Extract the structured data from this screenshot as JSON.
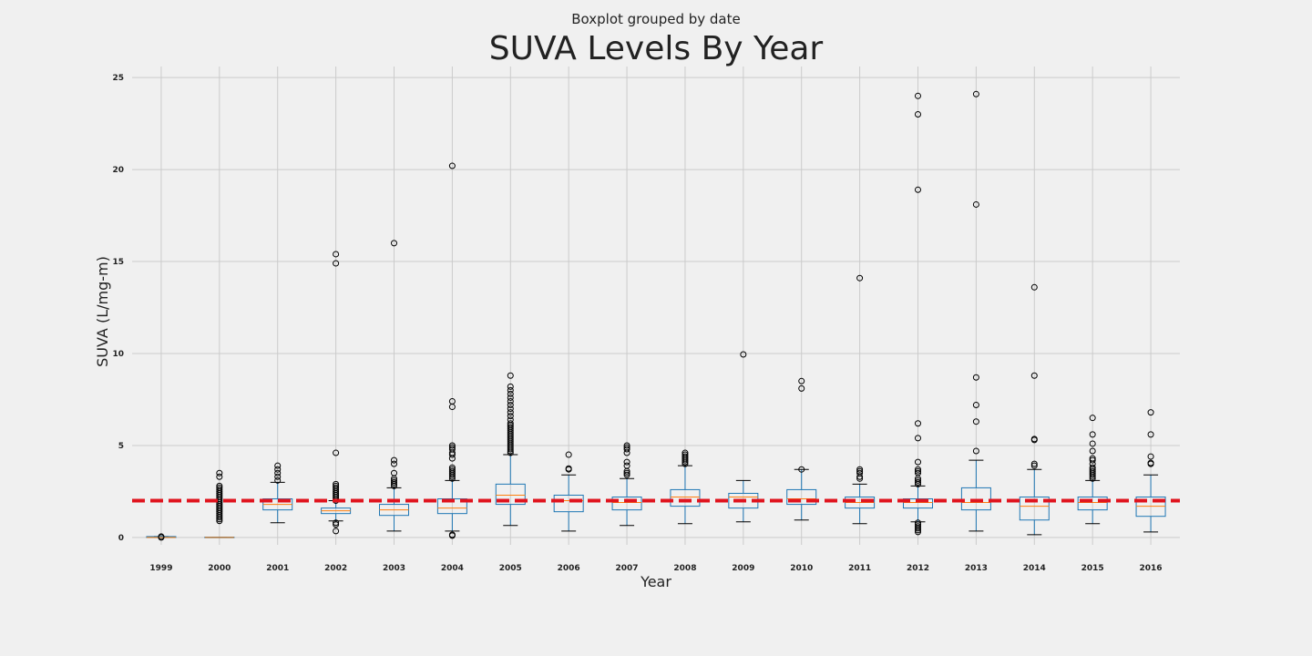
{
  "chart_data": {
    "type": "boxplot",
    "suptitle": "Boxplot grouped by date",
    "title": "SUVA Levels By Year",
    "xlabel": "Year",
    "ylabel": "SUVA (L/mg-m)",
    "ylim": [
      -0.4,
      25.6
    ],
    "yticks": [
      0,
      5,
      10,
      15,
      20,
      25
    ],
    "grid": true,
    "reference_line": {
      "y": 2,
      "color": "#e0141e",
      "style": "dashed"
    },
    "colors": {
      "background": "#f0f0f0",
      "box": "#1f77b4",
      "median": "#ff7f0e",
      "whisker": "#000000",
      "grid": "#cbcbcb"
    },
    "categories": [
      "1999",
      "2000",
      "2001",
      "2002",
      "2003",
      "2004",
      "2005",
      "2006",
      "2007",
      "2008",
      "2009",
      "2010",
      "2011",
      "2012",
      "2013",
      "2014",
      "2015",
      "2016"
    ],
    "boxes": [
      {
        "label": "1999",
        "q1": 0.0,
        "median": 0.0,
        "q3": 0.05,
        "whisker_low": 0.0,
        "whisker_high": 0.05,
        "fliers": [
          0.0,
          0.05
        ]
      },
      {
        "label": "2000",
        "q1": 0.0,
        "median": 0.0,
        "q3": 0.02,
        "whisker_low": 0.0,
        "whisker_high": 0.02,
        "fliers": [
          0.9,
          1.0,
          1.1,
          1.2,
          1.3,
          1.4,
          1.5,
          1.6,
          1.7,
          1.8,
          1.9,
          2.0,
          2.1,
          2.2,
          2.3,
          2.4,
          2.5,
          2.6,
          2.7,
          2.8,
          3.3,
          3.5
        ]
      },
      {
        "label": "2001",
        "q1": 1.5,
        "median": 1.8,
        "q3": 2.1,
        "whisker_low": 0.8,
        "whisker_high": 3.0,
        "fliers": [
          3.1,
          3.3,
          3.5,
          3.7,
          3.9
        ]
      },
      {
        "label": "2002",
        "q1": 1.3,
        "median": 1.45,
        "q3": 1.6,
        "whisker_low": 0.9,
        "whisker_high": 2.0,
        "fliers": [
          0.35,
          0.7,
          0.8,
          2.0,
          2.1,
          2.2,
          2.3,
          2.4,
          2.5,
          2.6,
          2.7,
          2.8,
          2.9,
          4.6,
          14.9,
          15.4
        ]
      },
      {
        "label": "2003",
        "q1": 1.2,
        "median": 1.5,
        "q3": 1.8,
        "whisker_low": 0.35,
        "whisker_high": 2.7,
        "fliers": [
          2.8,
          2.9,
          3.0,
          3.1,
          3.2,
          3.5,
          4.0,
          4.2,
          16.0
        ]
      },
      {
        "label": "2004",
        "q1": 1.3,
        "median": 1.6,
        "q3": 2.1,
        "whisker_low": 0.35,
        "whisker_high": 3.1,
        "fliers": [
          0.1,
          0.15,
          3.2,
          3.3,
          3.4,
          3.5,
          3.6,
          3.7,
          3.8,
          4.3,
          4.5,
          4.6,
          4.8,
          4.9,
          5.0,
          7.1,
          7.4,
          20.2
        ]
      },
      {
        "label": "2005",
        "q1": 1.8,
        "median": 2.3,
        "q3": 2.9,
        "whisker_low": 0.65,
        "whisker_high": 4.5,
        "fliers": [
          4.6,
          4.7,
          4.8,
          4.9,
          5.0,
          5.1,
          5.2,
          5.3,
          5.4,
          5.5,
          5.6,
          5.7,
          5.8,
          5.9,
          6.0,
          6.1,
          6.2,
          6.4,
          6.6,
          6.8,
          7.0,
          7.2,
          7.4,
          7.6,
          7.8,
          8.0,
          8.2,
          8.8
        ]
      },
      {
        "label": "2006",
        "q1": 1.4,
        "median": 2.0,
        "q3": 2.3,
        "whisker_low": 0.35,
        "whisker_high": 3.4,
        "fliers": [
          3.7,
          3.75,
          4.5
        ]
      },
      {
        "label": "2007",
        "q1": 1.5,
        "median": 1.9,
        "q3": 2.2,
        "whisker_low": 0.65,
        "whisker_high": 3.2,
        "fliers": [
          3.4,
          3.5,
          3.6,
          3.9,
          4.1,
          4.6,
          4.8,
          4.9,
          5.0
        ]
      },
      {
        "label": "2008",
        "q1": 1.7,
        "median": 2.2,
        "q3": 2.6,
        "whisker_low": 0.75,
        "whisker_high": 3.9,
        "fliers": [
          4.0,
          4.1,
          4.2,
          4.3,
          4.4,
          4.5,
          4.6
        ]
      },
      {
        "label": "2009",
        "q1": 1.6,
        "median": 2.2,
        "q3": 2.4,
        "whisker_low": 0.85,
        "whisker_high": 3.1,
        "fliers": [
          9.95
        ]
      },
      {
        "label": "2010",
        "q1": 1.8,
        "median": 2.1,
        "q3": 2.6,
        "whisker_low": 0.95,
        "whisker_high": 3.7,
        "fliers": [
          3.7,
          8.1,
          8.5
        ]
      },
      {
        "label": "2011",
        "q1": 1.6,
        "median": 1.9,
        "q3": 2.2,
        "whisker_low": 0.75,
        "whisker_high": 2.9,
        "fliers": [
          3.2,
          3.3,
          3.5,
          3.6,
          3.7,
          14.1
        ]
      },
      {
        "label": "2012",
        "q1": 1.6,
        "median": 1.9,
        "q3": 2.1,
        "whisker_low": 0.85,
        "whisker_high": 2.8,
        "fliers": [
          0.3,
          0.4,
          0.5,
          0.6,
          0.7,
          0.8,
          2.9,
          3.0,
          3.1,
          3.2,
          3.5,
          3.6,
          3.7,
          4.1,
          5.4,
          6.2,
          18.9,
          23.0,
          24.0
        ]
      },
      {
        "label": "2013",
        "q1": 1.5,
        "median": 1.9,
        "q3": 2.7,
        "whisker_low": 0.35,
        "whisker_high": 4.2,
        "fliers": [
          4.7,
          6.3,
          7.2,
          8.7,
          18.1,
          24.1
        ]
      },
      {
        "label": "2014",
        "q1": 0.95,
        "median": 1.7,
        "q3": 2.2,
        "whisker_low": 0.15,
        "whisker_high": 3.7,
        "fliers": [
          3.9,
          4.0,
          5.3,
          5.35,
          8.8,
          13.6
        ]
      },
      {
        "label": "2015",
        "q1": 1.5,
        "median": 1.9,
        "q3": 2.2,
        "whisker_low": 0.75,
        "whisker_high": 3.1,
        "fliers": [
          3.2,
          3.3,
          3.4,
          3.5,
          3.6,
          3.7,
          3.8,
          4.0,
          4.2,
          4.3,
          4.7,
          5.1,
          5.6,
          6.5
        ]
      },
      {
        "label": "2016",
        "q1": 1.15,
        "median": 1.7,
        "q3": 2.2,
        "whisker_low": 0.3,
        "whisker_high": 3.4,
        "fliers": [
          4.0,
          4.05,
          4.4,
          5.6,
          6.8
        ]
      }
    ]
  }
}
